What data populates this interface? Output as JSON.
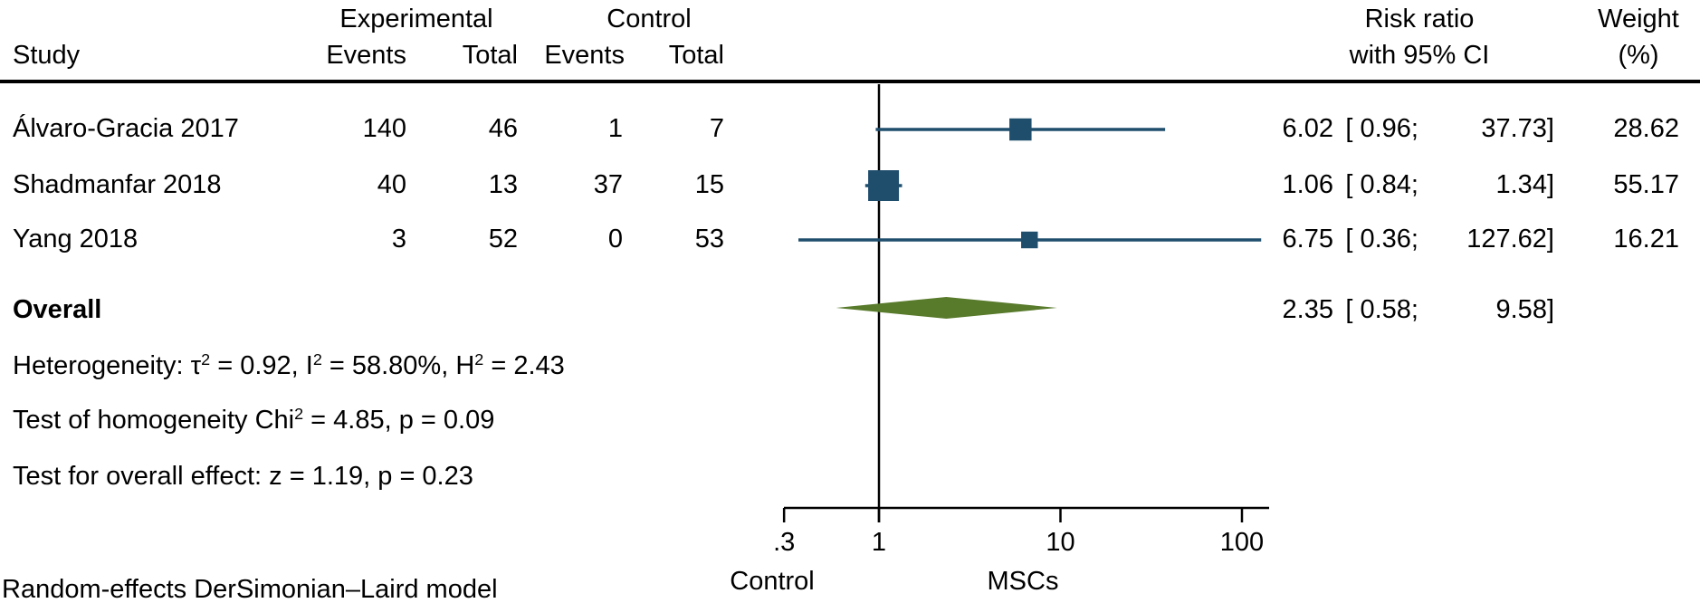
{
  "header": {
    "study": "Study",
    "experimental_group": "Experimental",
    "control_group": "Control",
    "exp_events": "Events",
    "exp_total": "Total",
    "ctrl_events": "Events",
    "ctrl_total": "Total",
    "risk_ratio_line1": "Risk ratio",
    "risk_ratio_line2": "with 95% CI",
    "weight_line1": "Weight",
    "weight_line2": "(%)"
  },
  "chart_data": {
    "type": "forest",
    "x_scale": "log10",
    "x_tick_labels": [
      ".3",
      "1",
      "10",
      "100"
    ],
    "x_tick_values": [
      0.3,
      1,
      10,
      100
    ],
    "x_range_drawn": [
      0.3,
      140
    ],
    "ref_line_value": 1,
    "axis_group_labels": {
      "left": "Control",
      "right": "MSCs"
    },
    "effect_measure": "Risk ratio",
    "studies": [
      {
        "label": "Álvaro-Gracia 2017",
        "exp_events": "140",
        "exp_total": "46",
        "ctrl_events": "1",
        "ctrl_total": "7",
        "rr": 6.02,
        "ci_low": 0.96,
        "ci_high": 37.73,
        "weight": 28.62,
        "rr_text": "6.02",
        "ci_low_text": "[ 0.96;",
        "ci_high_text": "37.73]",
        "weight_text": "28.62"
      },
      {
        "label": "Shadmanfar 2018",
        "exp_events": "40",
        "exp_total": "13",
        "ctrl_events": "37",
        "ctrl_total": "15",
        "rr": 1.06,
        "ci_low": 0.84,
        "ci_high": 1.34,
        "weight": 55.17,
        "rr_text": "1.06",
        "ci_low_text": "[ 0.84;",
        "ci_high_text": "1.34]",
        "weight_text": "55.17"
      },
      {
        "label": "Yang 2018",
        "exp_events": "3",
        "exp_total": "52",
        "ctrl_events": "0",
        "ctrl_total": "53",
        "rr": 6.75,
        "ci_low": 0.36,
        "ci_high": 127.62,
        "weight": 16.21,
        "rr_text": "6.75",
        "ci_low_text": "[ 0.36;",
        "ci_high_text": "127.62]",
        "weight_text": "16.21"
      }
    ],
    "overall": {
      "label": "Overall",
      "rr": 2.35,
      "ci_low": 0.58,
      "ci_high": 9.58,
      "rr_text": "2.35",
      "ci_low_text": "[ 0.58;",
      "ci_high_text": "9.58]"
    }
  },
  "stats": {
    "heterogeneity_segments": [
      {
        "text": "Heterogeneity: τ"
      },
      {
        "text": "2",
        "sup": true
      },
      {
        "text": " = 0.92, I"
      },
      {
        "text": "2",
        "sup": true
      },
      {
        "text": " = 58.80%, H"
      },
      {
        "text": "2",
        "sup": true
      },
      {
        "text": " = 2.43"
      }
    ],
    "homogeneity_segments": [
      {
        "text": "Test of homogeneity Chi"
      },
      {
        "text": "2",
        "sup": true
      },
      {
        "text": " = 4.85, p = 0.09"
      }
    ],
    "overall_effect_text": "Test for overall effect: z = 1.19, p = 0.23"
  },
  "footer": "Random-effects DerSimonian–Laird model",
  "colors": {
    "marker_navy": "#1f4e6d",
    "diamond_green": "#587a2b",
    "axis_black": "#000000"
  }
}
